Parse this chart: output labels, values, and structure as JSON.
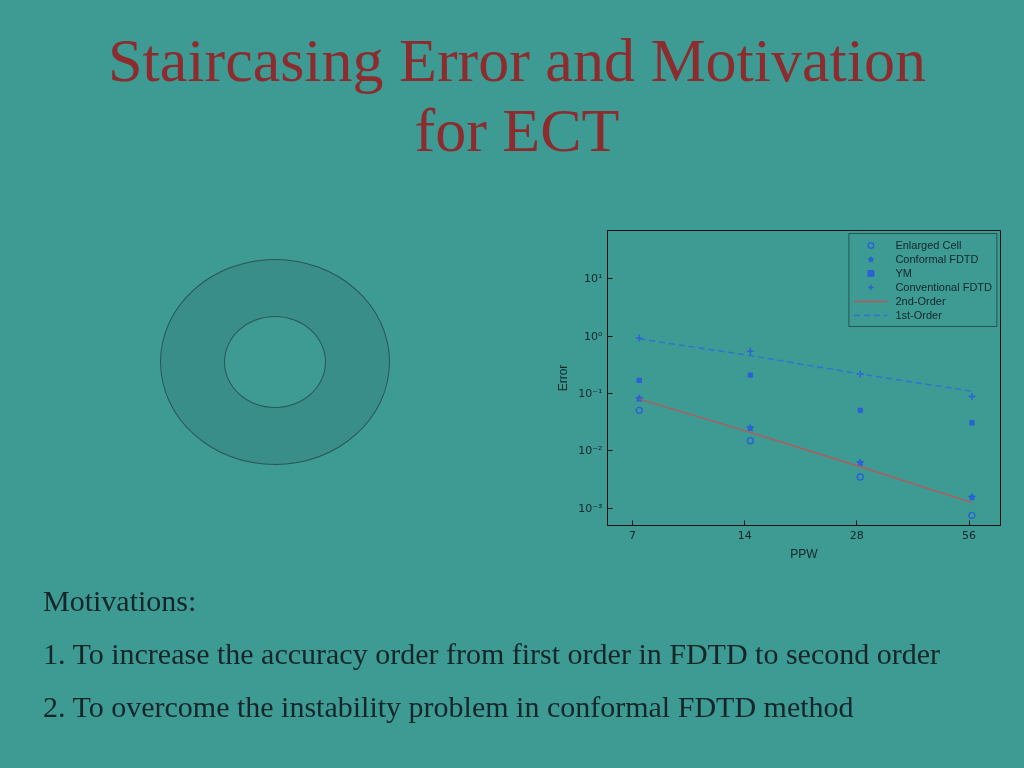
{
  "chart_data": {
    "type": "scatter",
    "title": "Staircasing Error and Motivation for ECT",
    "xlabel": "PPW",
    "ylabel": "Error",
    "annotations": [
      "Motivations:",
      "1. To increase the accuracy order from first order in FDTD to second order",
      "2. To overcome the instability problem in conformal FDTD method"
    ],
    "x": [
      7.3,
      14.5,
      28.6,
      57
    ],
    "series": [
      {
        "name": "Enlarged Cell",
        "color": "#2a62d6",
        "marker": "circle",
        "values": [
          0.051,
          0.015,
          0.0035,
          0.00075
        ]
      },
      {
        "name": "Conformal FDTD",
        "color": "#2a62d6",
        "marker": "star",
        "values": [
          0.082,
          0.025,
          0.0062,
          0.00155
        ]
      },
      {
        "name": "YM",
        "color": "#2a62d6",
        "marker": "square",
        "values": [
          0.17,
          0.21,
          0.051,
          0.031
        ]
      },
      {
        "name": "Conventional FDTD",
        "color": "#2a62d6",
        "marker": "cross",
        "values": [
          0.93,
          0.55,
          0.22,
          0.089
        ]
      },
      {
        "name": "2nd-Order",
        "type": "line",
        "color": "#b35a5c",
        "line_style": "solid",
        "values": [
          0.08,
          0.021,
          0.0053,
          0.00125
        ]
      },
      {
        "name": "1st-Order",
        "type": "line",
        "color": "#3070d8",
        "line_style": "dashed",
        "values": [
          0.9,
          0.46,
          0.22,
          0.11
        ]
      }
    ],
    "xlim": [
      6,
      68
    ],
    "ylim": [
      0.0005,
      70
    ],
    "xticks": [
      7,
      14,
      28,
      56
    ],
    "yticks": [
      {
        "value": 0.001,
        "label": "10⁻³"
      },
      {
        "value": 0.01,
        "label": "10⁻²"
      },
      {
        "value": 0.1,
        "label": "10⁻¹"
      },
      {
        "value": 1,
        "label": "10⁰"
      },
      {
        "value": 10,
        "label": "10¹"
      }
    ],
    "log": "xy",
    "grid": false,
    "legend": "top right"
  }
}
